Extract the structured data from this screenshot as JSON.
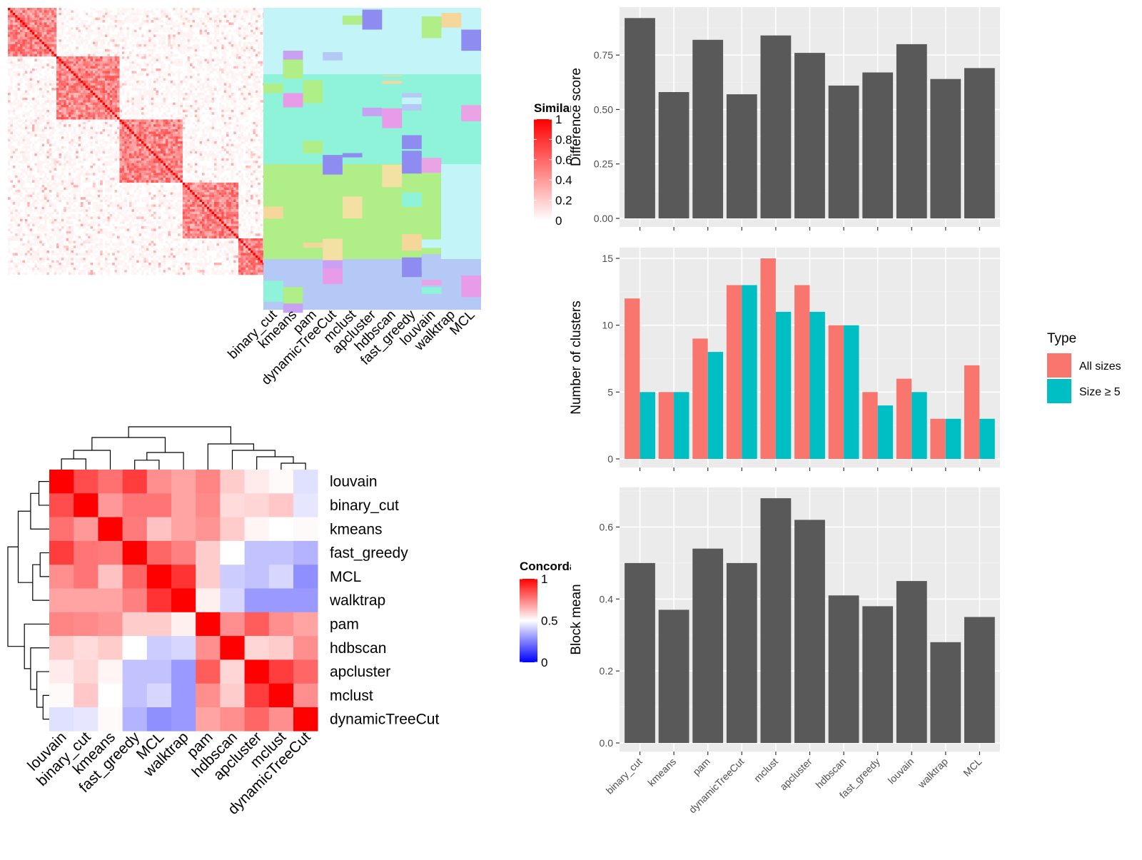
{
  "colors": {
    "panel_bg": "#ebebeb",
    "grid_major": "#ffffff",
    "bar_dark": "#595959",
    "all_sizes": "#f8766d",
    "size_ge5": "#00bfc4",
    "heat_high": "#ff0000",
    "heat_mid": "#ffffff",
    "heat_low": "#0000ff"
  },
  "similarity_panel": {
    "legend_title": "Similarity",
    "legend_ticks": [
      "0",
      "0.2",
      "0.4",
      "0.6",
      "0.8",
      "1"
    ],
    "method_labels": [
      "binary_cut",
      "kmeans",
      "pam",
      "dynamicTreeCut",
      "mclust",
      "apcluster",
      "hdbscan",
      "fast_greedy",
      "louvain",
      "walktrap",
      "MCL"
    ],
    "block_bounds": [
      0,
      20,
      46,
      72,
      95,
      110
    ]
  },
  "concordance_panel": {
    "legend_title": "Concordance",
    "legend_ticks": [
      "0",
      "0.5",
      "1"
    ],
    "labels": [
      "louvain",
      "binary_cut",
      "kmeans",
      "fast_greedy",
      "MCL",
      "walktrap",
      "pam",
      "hdbscan",
      "apcluster",
      "mclust",
      "dynamicTreeCut"
    ],
    "matrix": [
      [
        1.0,
        0.85,
        0.78,
        0.88,
        0.72,
        0.68,
        0.74,
        0.6,
        0.54,
        0.51,
        0.44
      ],
      [
        0.85,
        1.0,
        0.7,
        0.77,
        0.77,
        0.68,
        0.73,
        0.57,
        0.58,
        0.61,
        0.45
      ],
      [
        0.78,
        0.7,
        1.0,
        0.76,
        0.62,
        0.68,
        0.71,
        0.6,
        0.52,
        0.5,
        0.51
      ],
      [
        0.88,
        0.77,
        0.76,
        1.0,
        0.8,
        0.75,
        0.6,
        0.5,
        0.38,
        0.38,
        0.35
      ],
      [
        0.72,
        0.77,
        0.62,
        0.8,
        1.0,
        0.9,
        0.6,
        0.4,
        0.38,
        0.42,
        0.28
      ],
      [
        0.68,
        0.68,
        0.68,
        0.75,
        0.9,
        1.0,
        0.53,
        0.42,
        0.3,
        0.3,
        0.3
      ],
      [
        0.74,
        0.73,
        0.71,
        0.6,
        0.6,
        0.53,
        1.0,
        0.72,
        0.82,
        0.72,
        0.68
      ],
      [
        0.6,
        0.57,
        0.6,
        0.5,
        0.4,
        0.42,
        0.72,
        1.0,
        0.58,
        0.6,
        0.72
      ],
      [
        0.54,
        0.58,
        0.52,
        0.38,
        0.38,
        0.3,
        0.82,
        0.58,
        1.0,
        0.88,
        0.8
      ],
      [
        0.51,
        0.61,
        0.5,
        0.38,
        0.42,
        0.3,
        0.72,
        0.6,
        0.88,
        1.0,
        0.72
      ],
      [
        0.44,
        0.45,
        0.51,
        0.35,
        0.28,
        0.3,
        0.68,
        0.72,
        0.8,
        0.72,
        1.0
      ]
    ]
  },
  "chart_data": [
    {
      "type": "bar",
      "categories": [
        "binary_cut",
        "kmeans",
        "pam",
        "dynamicTreeCut",
        "mclust",
        "apcluster",
        "hdbscan",
        "fast_greedy",
        "louvain",
        "walktrap",
        "MCL"
      ],
      "values": [
        0.92,
        0.58,
        0.82,
        0.57,
        0.84,
        0.76,
        0.61,
        0.67,
        0.8,
        0.64,
        0.69
      ],
      "ylabel": "Difference score",
      "ylim": [
        0,
        0.97
      ],
      "yticks": [
        "0.00",
        "0.25",
        "0.50",
        "0.75"
      ],
      "grid": true
    },
    {
      "type": "bar",
      "categories": [
        "binary_cut",
        "kmeans",
        "pam",
        "dynamicTreeCut",
        "mclust",
        "apcluster",
        "hdbscan",
        "fast_greedy",
        "louvain",
        "walktrap",
        "MCL"
      ],
      "series": [
        {
          "name": "All sizes",
          "values": [
            12,
            5,
            9,
            13,
            15,
            13,
            10,
            5,
            6,
            3,
            7
          ]
        },
        {
          "name": "Size ≥ 5",
          "values": [
            5,
            5,
            8,
            13,
            11,
            11,
            10,
            4,
            5,
            3,
            3
          ]
        }
      ],
      "ylabel": "Number of clusters",
      "ylim": [
        0,
        15.8
      ],
      "yticks": [
        "0",
        "5",
        "10",
        "15"
      ],
      "legend_title": "Type",
      "legend_position": "right",
      "grid": true
    },
    {
      "type": "bar",
      "categories": [
        "binary_cut",
        "kmeans",
        "pam",
        "dynamicTreeCut",
        "mclust",
        "apcluster",
        "hdbscan",
        "fast_greedy",
        "louvain",
        "walktrap",
        "MCL"
      ],
      "values": [
        0.5,
        0.37,
        0.54,
        0.5,
        0.68,
        0.62,
        0.41,
        0.38,
        0.45,
        0.28,
        0.35
      ],
      "ylabel": "Block mean",
      "ylim": [
        0,
        0.71
      ],
      "yticks": [
        "0.0",
        "0.2",
        "0.4",
        "0.6"
      ],
      "grid": true
    }
  ]
}
